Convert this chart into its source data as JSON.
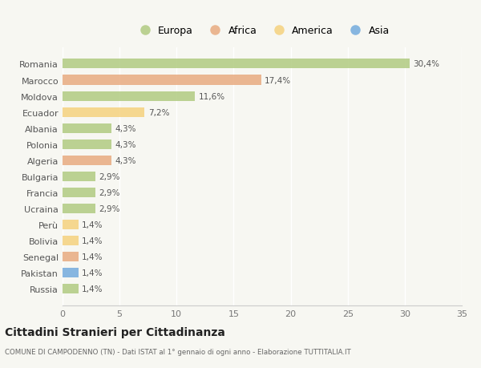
{
  "countries": [
    "Romania",
    "Marocco",
    "Moldova",
    "Ecuador",
    "Albania",
    "Polonia",
    "Algeria",
    "Bulgaria",
    "Francia",
    "Ucraina",
    "Perù",
    "Bolivia",
    "Senegal",
    "Pakistan",
    "Russia"
  ],
  "values": [
    30.4,
    17.4,
    11.6,
    7.2,
    4.3,
    4.3,
    4.3,
    2.9,
    2.9,
    2.9,
    1.4,
    1.4,
    1.4,
    1.4,
    1.4
  ],
  "labels": [
    "30,4%",
    "17,4%",
    "11,6%",
    "7,2%",
    "4,3%",
    "4,3%",
    "4,3%",
    "2,9%",
    "2,9%",
    "2,9%",
    "1,4%",
    "1,4%",
    "1,4%",
    "1,4%",
    "1,4%"
  ],
  "continents": [
    "Europa",
    "Africa",
    "Europa",
    "America",
    "Europa",
    "Europa",
    "Africa",
    "Europa",
    "Europa",
    "Europa",
    "America",
    "America",
    "Africa",
    "Asia",
    "Europa"
  ],
  "colors": {
    "Europa": "#aec97d",
    "Africa": "#e8a87c",
    "America": "#f5d07a",
    "Asia": "#6fa8dc"
  },
  "xlim": [
    0,
    35
  ],
  "xticks": [
    0,
    5,
    10,
    15,
    20,
    25,
    30,
    35
  ],
  "title": "Cittadini Stranieri per Cittadinanza",
  "subtitle": "COMUNE DI CAMPODENNO (TN) - Dati ISTAT al 1° gennaio di ogni anno - Elaborazione TUTTITALIA.IT",
  "background_color": "#f7f7f2",
  "bar_alpha": 0.82,
  "legend_order": [
    "Europa",
    "Africa",
    "America",
    "Asia"
  ]
}
